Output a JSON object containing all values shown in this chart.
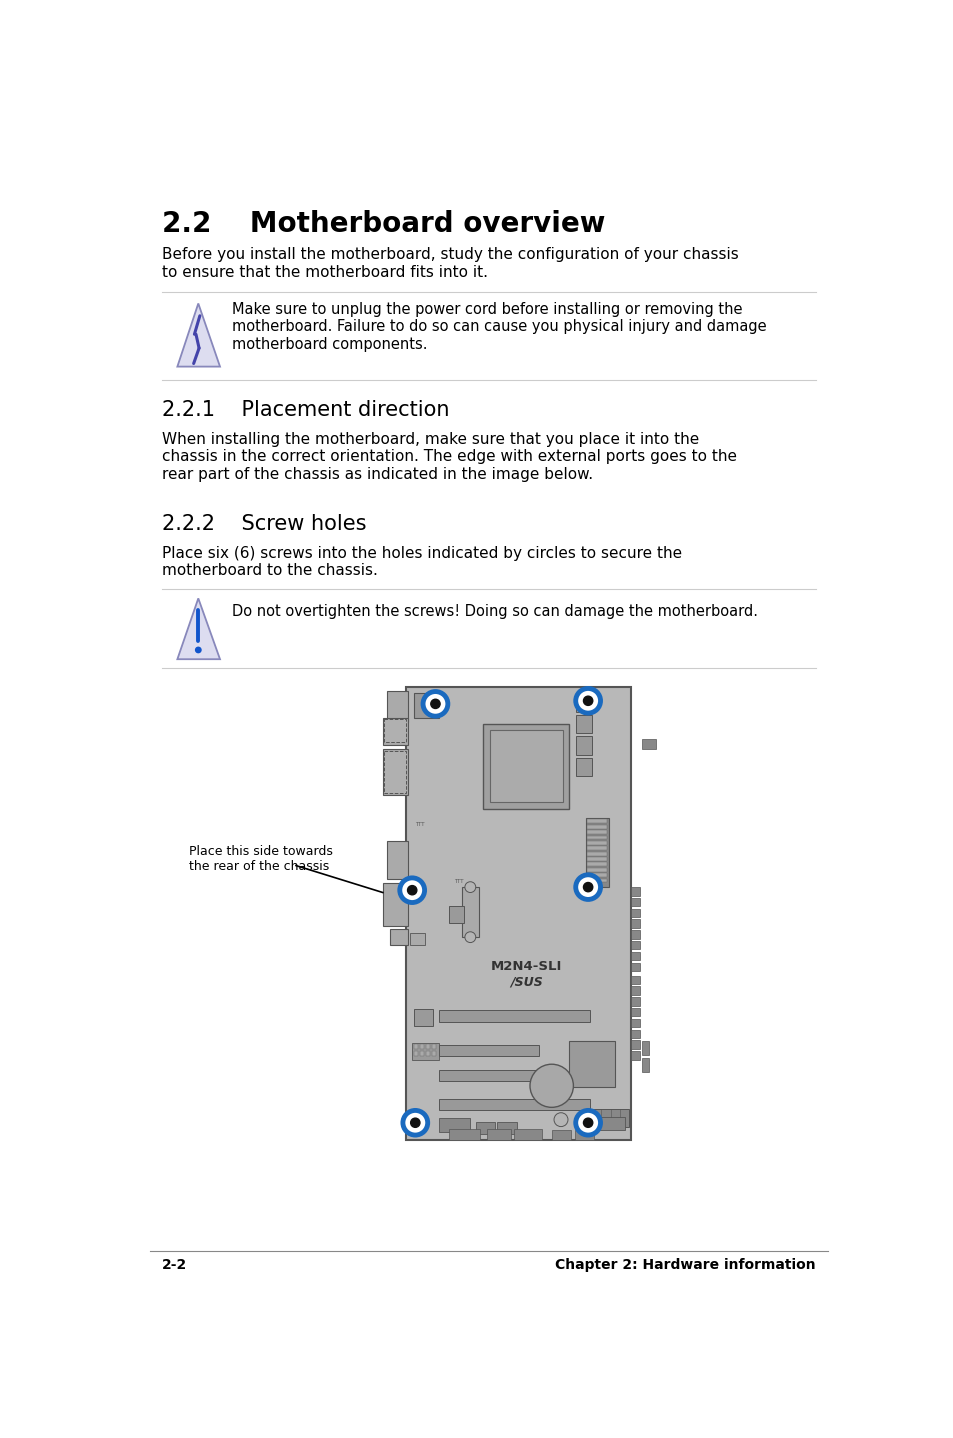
{
  "title": "2.2    Motherboard overview",
  "intro_text": "Before you install the motherboard, study the configuration of your chassis\nto ensure that the motherboard fits into it.",
  "warning1_text": "Make sure to unplug the power cord before installing or removing the\nmotherboard. Failure to do so can cause you physical injury and damage\nmotherboard components.",
  "section221": "2.2.1    Placement direction",
  "section221_text": "When installing the motherboard, make sure that you place it into the\nchassis in the correct orientation. The edge with external ports goes to the\nrear part of the chassis as indicated in the image below.",
  "section222": "2.2.2    Screw holes",
  "section222_text": "Place six (6) screws into the holes indicated by circles to secure the\nmotherboard to the chassis.",
  "warning2_text": "Do not overtighten the screws! Doing so can damage the motherboard.",
  "placement_label": "Place this side towards\nthe rear of the chassis",
  "mb_label": "M2N4-SLI",
  "mb_sublabel": "/SUS",
  "footer_left": "2-2",
  "footer_right": "Chapter 2: Hardware information",
  "bg_color": "#ffffff",
  "text_color": "#000000",
  "board_color": "#b8b8b8",
  "board_edge": "#555555",
  "screw_color": "#1a6abf",
  "dark_component": "#888888",
  "med_component": "#9a9a9a"
}
